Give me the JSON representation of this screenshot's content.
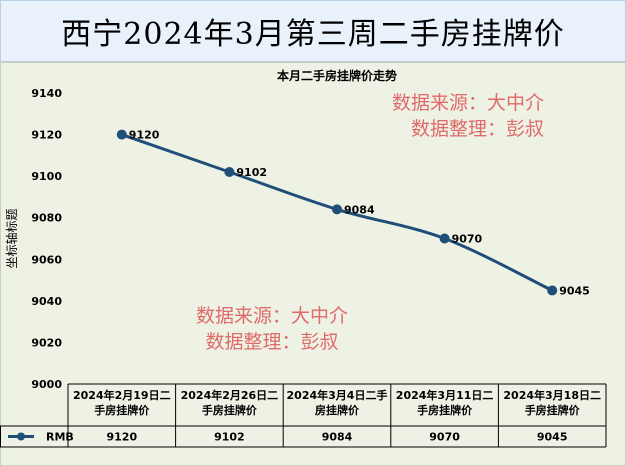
{
  "header": {
    "title": "西宁2024年3月第三周二手房挂牌价"
  },
  "watermark_top": {
    "line1": "数据来源：大中介",
    "line2": "数据整理：彭叔"
  },
  "watermark_bottom": {
    "line1": "数据来源：大中介",
    "line2": "数据整理：彭叔"
  },
  "colors": {
    "line": "#1f4e79",
    "title_bg": "#e9f2fb",
    "chart_bg": "#eef2e4",
    "watermark": "#e06a6a"
  },
  "chart_data": {
    "type": "line",
    "title": "本月二手房挂牌价走势",
    "ylabel": "坐标轴标题",
    "ylim": [
      9000,
      9140
    ],
    "yticks": [
      9000,
      9020,
      9040,
      9060,
      9080,
      9100,
      9120,
      9140
    ],
    "categories": [
      "2024年2月19日二手房挂牌价",
      "2024年2月26日二手房挂牌价",
      "2024年3月4日二手房挂牌价",
      "2024年3月11日二手房挂牌价",
      "2024年3月18日二手房挂牌价"
    ],
    "series": [
      {
        "name": "RMB",
        "values": [
          9120,
          9102,
          9084,
          9070,
          9045
        ]
      }
    ],
    "data_table": true,
    "grid": false
  }
}
